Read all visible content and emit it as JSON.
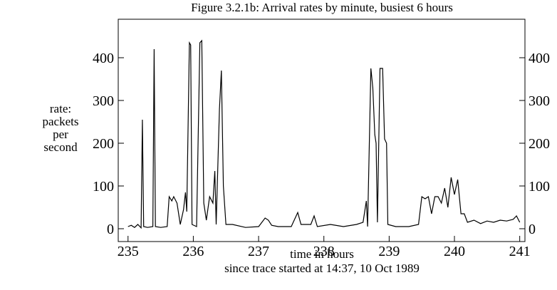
{
  "chart_data": {
    "type": "line",
    "title": "Figure 3.2.1b: Arrival rates by minute, busiest 6 hours",
    "xlabel": [
      "time in hours",
      "since trace started at 14:37, 10 Oct 1989"
    ],
    "ylabel": [
      "rate:",
      "packets",
      "per",
      "second"
    ],
    "color": "#000000",
    "x": [
      235.0,
      235.05,
      235.1,
      235.15,
      235.2,
      235.22,
      235.24,
      235.3,
      235.38,
      235.4,
      235.42,
      235.5,
      235.6,
      235.63,
      235.67,
      235.7,
      235.75,
      235.8,
      235.85,
      235.88,
      235.9,
      235.94,
      235.96,
      235.98,
      236.05,
      236.1,
      236.13,
      236.16,
      236.2,
      236.25,
      236.3,
      236.33,
      236.35,
      236.4,
      236.43,
      236.46,
      236.5,
      236.6,
      236.8,
      237.0,
      237.1,
      237.15,
      237.2,
      237.3,
      237.5,
      237.6,
      237.65,
      237.8,
      237.85,
      237.9,
      238.1,
      238.3,
      238.5,
      238.6,
      238.65,
      238.67,
      238.72,
      238.75,
      238.78,
      238.8,
      238.82,
      238.86,
      238.9,
      238.93,
      238.96,
      238.98,
      239.1,
      239.3,
      239.45,
      239.5,
      239.55,
      239.6,
      239.65,
      239.7,
      239.75,
      239.8,
      239.85,
      239.9,
      239.95,
      240.0,
      240.05,
      240.1,
      240.15,
      240.2,
      240.3,
      240.4,
      240.5,
      240.6,
      240.7,
      240.8,
      240.9,
      240.95,
      241.0
    ],
    "values": [
      5,
      8,
      3,
      10,
      2,
      255,
      5,
      3,
      5,
      420,
      5,
      3,
      5,
      75,
      65,
      75,
      60,
      10,
      45,
      85,
      40,
      435,
      430,
      10,
      5,
      435,
      440,
      60,
      20,
      75,
      60,
      135,
      10,
      280,
      370,
      100,
      10,
      10,
      3,
      5,
      25,
      20,
      8,
      5,
      5,
      38,
      10,
      10,
      30,
      5,
      10,
      5,
      10,
      15,
      65,
      5,
      375,
      330,
      220,
      200,
      15,
      375,
      375,
      210,
      200,
      10,
      5,
      5,
      10,
      75,
      70,
      75,
      35,
      75,
      75,
      60,
      95,
      50,
      120,
      80,
      115,
      35,
      35,
      15,
      20,
      12,
      18,
      15,
      20,
      18,
      22,
      30,
      15
    ],
    "xlim": [
      234.85,
      241.08
    ],
    "ylim": [
      -30,
      490
    ],
    "xticks": [
      235,
      236,
      237,
      238,
      239,
      240,
      241
    ],
    "yticks": [
      0,
      100,
      200,
      300,
      400
    ]
  }
}
